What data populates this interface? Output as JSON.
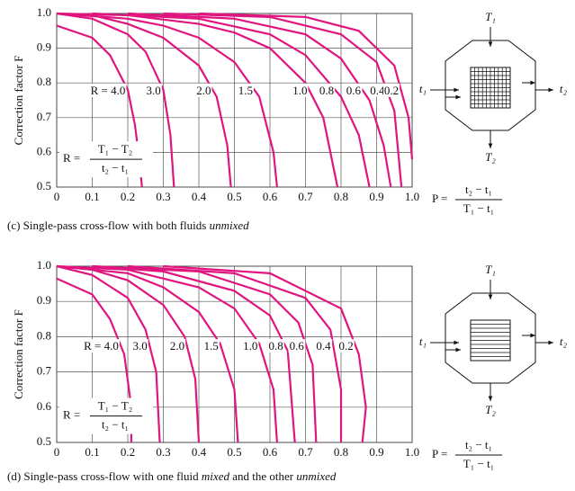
{
  "chart_data": [
    {
      "type": "line",
      "ylabel": "Correction factor F",
      "color": "#e0157f",
      "grid": true,
      "xlim": [
        0,
        1
      ],
      "ylim": [
        0.5,
        1
      ],
      "xticks": [
        0,
        0.1,
        0.2,
        0.3,
        0.4,
        0.5,
        0.6,
        0.7,
        0.8,
        0.9,
        {
          "value": 1,
          "label": "1.0"
        }
      ],
      "yticks": [
        0.5,
        0.6,
        0.7,
        0.8,
        0.9,
        {
          "value": 1,
          "label": "1.0"
        }
      ],
      "series": [
        {
          "name": "R = 4.0",
          "x": [
            0,
            0.1,
            0.15,
            0.2,
            0.22,
            0.23,
            0.24
          ],
          "values": [
            0.965,
            0.93,
            0.88,
            0.78,
            0.68,
            0.6,
            0.5
          ]
        },
        {
          "name": "3.0",
          "x": [
            0,
            0.1,
            0.2,
            0.25,
            0.3,
            0.32,
            0.33
          ],
          "values": [
            1,
            0.985,
            0.94,
            0.89,
            0.78,
            0.65,
            0.5
          ]
        },
        {
          "name": "2.0",
          "x": [
            0,
            0.1,
            0.2,
            0.3,
            0.4,
            0.45,
            0.48,
            0.49
          ],
          "values": [
            1,
            0.995,
            0.97,
            0.93,
            0.85,
            0.76,
            0.62,
            0.5
          ]
        },
        {
          "name": "1.5",
          "x": [
            0,
            0.2,
            0.3,
            0.4,
            0.5,
            0.57,
            0.61,
            0.62
          ],
          "values": [
            1,
            0.985,
            0.965,
            0.93,
            0.86,
            0.76,
            0.6,
            0.5
          ]
        },
        {
          "name": "1.0",
          "x": [
            0,
            0.2,
            0.4,
            0.5,
            0.6,
            0.7,
            0.75,
            0.79
          ],
          "values": [
            1,
            0.995,
            0.97,
            0.945,
            0.9,
            0.8,
            0.7,
            0.5
          ]
        },
        {
          "name": "0.8",
          "x": [
            0.1,
            0.4,
            0.6,
            0.7,
            0.8,
            0.85,
            0.88
          ],
          "values": [
            1,
            0.985,
            0.94,
            0.88,
            0.76,
            0.65,
            0.5
          ]
        },
        {
          "name": "0.6",
          "x": [
            0.2,
            0.5,
            0.7,
            0.8,
            0.88,
            0.92,
            0.94
          ],
          "values": [
            1,
            0.985,
            0.94,
            0.87,
            0.75,
            0.62,
            0.5
          ]
        },
        {
          "name": "0.4",
          "x": [
            0.3,
            0.6,
            0.8,
            0.9,
            0.95,
            0.97
          ],
          "values": [
            1,
            0.99,
            0.94,
            0.86,
            0.72,
            0.5
          ]
        },
        {
          "name": "0.2",
          "x": [
            0.4,
            0.7,
            0.85,
            0.95,
            0.99,
            1
          ],
          "values": [
            1,
            0.99,
            0.95,
            0.85,
            0.7,
            0.58
          ]
        }
      ],
      "r_formula": [
        "R =",
        "T₁ − T₂",
        "t₂ − t₁"
      ],
      "p_formula": [
        "P =",
        "t₂ − t₁",
        "T₁ − t₁"
      ],
      "caption": [
        "(c) Single-pass cross-flow with both fluids ",
        "unmixed"
      ],
      "diagram_labels": {
        "top": "T₁",
        "left": "t₁",
        "right": "t₂",
        "bottom": "T₂"
      }
    },
    {
      "type": "line",
      "ylabel": "Correction factor F",
      "color": "#e0157f",
      "grid": true,
      "xlim": [
        0,
        1
      ],
      "ylim": [
        0.5,
        1
      ],
      "xticks": [
        0,
        0.1,
        0.2,
        0.3,
        0.4,
        0.5,
        0.6,
        0.7,
        0.8,
        0.9,
        {
          "value": 1,
          "label": "1.0"
        }
      ],
      "yticks": [
        0.5,
        0.6,
        0.7,
        0.8,
        0.9,
        {
          "value": 1,
          "label": "1.0"
        }
      ],
      "series": [
        {
          "name": "R = 4.0",
          "x": [
            0,
            0.1,
            0.15,
            0.19,
            0.21,
            0.21
          ],
          "values": [
            0.965,
            0.92,
            0.85,
            0.75,
            0.6,
            0.5
          ]
        },
        {
          "name": "3.0",
          "x": [
            0,
            0.1,
            0.2,
            0.25,
            0.28,
            0.29
          ],
          "values": [
            1,
            0.975,
            0.91,
            0.82,
            0.7,
            0.5
          ]
        },
        {
          "name": "2.0",
          "x": [
            0,
            0.1,
            0.2,
            0.3,
            0.36,
            0.39,
            0.4
          ],
          "values": [
            1,
            0.99,
            0.96,
            0.89,
            0.8,
            0.68,
            0.5
          ]
        },
        {
          "name": "1.5",
          "x": [
            0,
            0.2,
            0.3,
            0.4,
            0.46,
            0.5,
            0.51
          ],
          "values": [
            1,
            0.98,
            0.94,
            0.87,
            0.78,
            0.65,
            0.5
          ]
        },
        {
          "name": "1.0",
          "x": [
            0,
            0.2,
            0.4,
            0.5,
            0.57,
            0.61,
            0.62
          ],
          "values": [
            1,
            0.99,
            0.94,
            0.88,
            0.78,
            0.65,
            0.5
          ]
        },
        {
          "name": "0.8",
          "x": [
            0.1,
            0.3,
            0.5,
            0.6,
            0.65,
            0.67
          ],
          "values": [
            1,
            0.985,
            0.93,
            0.86,
            0.76,
            0.5
          ]
        },
        {
          "name": "0.6",
          "x": [
            0.1,
            0.4,
            0.6,
            0.68,
            0.72,
            0.73
          ],
          "values": [
            1,
            0.985,
            0.92,
            0.84,
            0.72,
            0.5
          ]
        },
        {
          "name": "0.4",
          "x": [
            0.2,
            0.5,
            0.7,
            0.77,
            0.8,
            0.8
          ],
          "values": [
            1,
            0.98,
            0.91,
            0.82,
            0.65,
            0.5
          ]
        },
        {
          "name": "0.2",
          "x": [
            0.3,
            0.6,
            0.8,
            0.85,
            0.87,
            0.86
          ],
          "values": [
            1,
            0.98,
            0.88,
            0.75,
            0.6,
            0.5
          ]
        }
      ],
      "r_formula": [
        "R =",
        "T₁ − T₂",
        "t₂ − t₁"
      ],
      "p_formula": [
        "P =",
        "t₂ − t₁",
        "T₁ − t₁"
      ],
      "caption": [
        "(d) Single-pass cross-flow with one fluid ",
        "mixed",
        " and the other ",
        "unmixed"
      ],
      "diagram_labels": {
        "top": "T₁",
        "left": "t₁",
        "right": "t₂",
        "bottom": "T₂"
      }
    }
  ]
}
